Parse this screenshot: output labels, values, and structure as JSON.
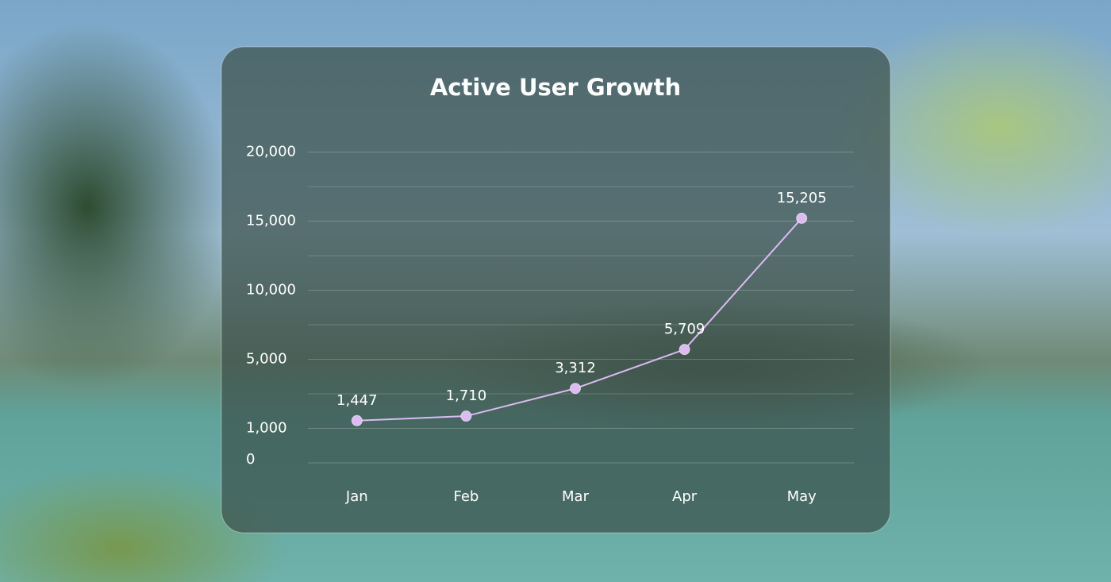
{
  "chart_data": {
    "type": "line",
    "title": "Active User Growth",
    "categories": [
      "Jan",
      "Feb",
      "Mar",
      "Apr",
      "May"
    ],
    "values": [
      1447,
      1710,
      3312,
      5709,
      15205
    ],
    "value_labels": [
      "1,447",
      "1,710",
      "3,312",
      "5,709",
      "15,205"
    ],
    "color": "#dcbaf2",
    "ylim": [
      0,
      20000
    ],
    "yticks": [
      0,
      {
        "value": 1000,
        "label": "1,000"
      },
      {
        "value": 5000,
        "label": "5,000"
      },
      {
        "value": 10000,
        "label": "10,000"
      },
      {
        "value": 15000,
        "label": "15,000"
      },
      {
        "value": 20000,
        "label": "20,000"
      }
    ],
    "grid": true
  }
}
